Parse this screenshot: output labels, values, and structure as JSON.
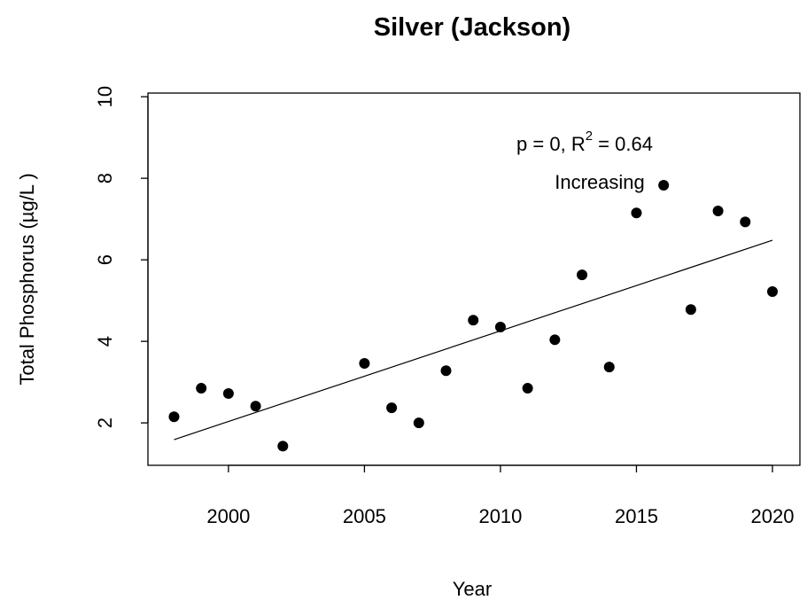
{
  "chart_data": {
    "type": "scatter",
    "title": "Silver (Jackson)",
    "x_label": "Year",
    "y_label": "Total Phosphorus (µg/L )",
    "x": [
      1998,
      1999,
      2000,
      2001,
      2002,
      2005,
      2006,
      2007,
      2008,
      2009,
      2010,
      2011,
      2012,
      2013,
      2014,
      2015,
      2016,
      2017,
      2018,
      2019,
      2020
    ],
    "values": [
      2.15,
      2.85,
      2.72,
      2.41,
      1.43,
      3.46,
      2.37,
      2.0,
      3.28,
      4.52,
      4.35,
      2.85,
      4.04,
      5.63,
      3.37,
      7.15,
      7.83,
      4.78,
      7.2,
      6.93,
      5.22
    ],
    "color": "#000000",
    "trend": {
      "x": [
        1998,
        2020
      ],
      "values": [
        1.59,
        6.48
      ]
    },
    "annotation": {
      "stat_text": "p = 0, R",
      "stat_sup": "2",
      "stat_value": " = 0.64",
      "direction": "Increasing"
    },
    "xlim": [
      1997.04,
      2021.01
    ],
    "ylim": [
      0.96,
      10.09
    ],
    "xticks": [
      2000,
      2005,
      2010,
      2015,
      2020
    ],
    "yticks": [
      2,
      4,
      6,
      8,
      10
    ]
  }
}
